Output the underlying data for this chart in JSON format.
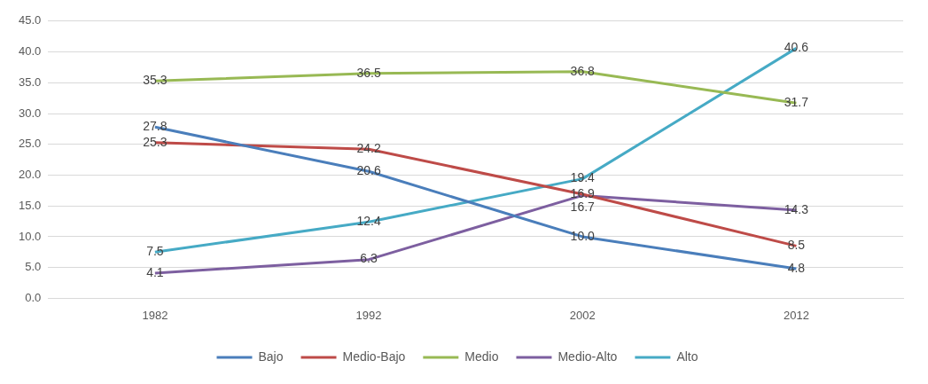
{
  "chart_data": {
    "type": "line",
    "categories": [
      "1982",
      "1992",
      "2002",
      "2012"
    ],
    "series": [
      {
        "name": "Bajo",
        "color": "#4a7ebb",
        "values": [
          27.8,
          20.6,
          10.0,
          4.8
        ],
        "value_labels": [
          "27.8",
          "20.6",
          "10.0",
          "4.8"
        ]
      },
      {
        "name": "Medio-Bajo",
        "color": "#be4b48",
        "values": [
          25.3,
          24.2,
          16.9,
          8.5
        ],
        "value_labels": [
          "25.3",
          "24.2",
          "16.9",
          "8.5"
        ]
      },
      {
        "name": "Medio",
        "color": "#98b954",
        "values": [
          35.3,
          36.5,
          36.8,
          31.7
        ],
        "value_labels": [
          "35.3",
          "36.5",
          "36.8",
          "31.7"
        ]
      },
      {
        "name": "Medio-Alto",
        "color": "#7d5fa0",
        "values": [
          4.1,
          6.3,
          16.7,
          14.3
        ],
        "value_labels": [
          "4.1",
          "6.3",
          "16.7",
          "14.3"
        ]
      },
      {
        "name": "Alto",
        "color": "#46aac5",
        "values": [
          7.5,
          12.4,
          19.4,
          40.6
        ],
        "value_labels": [
          "7.5",
          "12.4",
          "19.4",
          "40.6"
        ]
      }
    ],
    "ylim": [
      0,
      45
    ],
    "yticks": [
      {
        "value": 0,
        "label": "0.0"
      },
      {
        "value": 5,
        "label": "5.0"
      },
      {
        "value": 10,
        "label": "10.0"
      },
      {
        "value": 15,
        "label": "15.0"
      },
      {
        "value": 20,
        "label": "20.0"
      },
      {
        "value": 25,
        "label": "25.0"
      },
      {
        "value": 30,
        "label": "30.0"
      },
      {
        "value": 35,
        "label": "35.0"
      },
      {
        "value": 40,
        "label": "40.0"
      },
      {
        "value": 45,
        "label": "45.0"
      }
    ],
    "grid": "y",
    "legend": "bottom",
    "marker": "none",
    "line_style": "solid"
  }
}
